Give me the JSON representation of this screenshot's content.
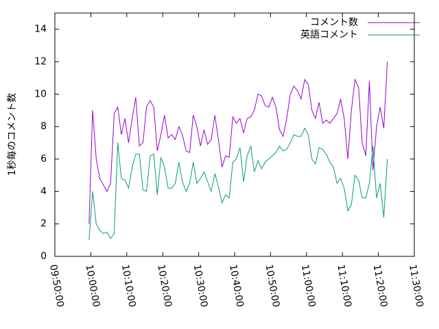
{
  "chart_data": {
    "type": "line",
    "ylabel": "1秒毎のコメント数",
    "legend": "top-right",
    "x": [
      "09:59:30",
      "10:00:30",
      "10:01:30",
      "10:02:30",
      "10:03:30",
      "10:04:30",
      "10:05:30",
      "10:06:30",
      "10:07:30",
      "10:08:30",
      "10:09:30",
      "10:10:30",
      "10:11:30",
      "10:12:30",
      "10:13:30",
      "10:14:30",
      "10:15:30",
      "10:16:30",
      "10:17:30",
      "10:18:30",
      "10:19:30",
      "10:20:30",
      "10:21:30",
      "10:22:30",
      "10:23:30",
      "10:24:30",
      "10:25:30",
      "10:26:30",
      "10:27:30",
      "10:28:30",
      "10:29:30",
      "10:30:30",
      "10:31:30",
      "10:32:30",
      "10:33:30",
      "10:34:30",
      "10:35:30",
      "10:36:30",
      "10:37:30",
      "10:38:30",
      "10:39:30",
      "10:40:30",
      "10:41:30",
      "10:42:30",
      "10:43:30",
      "10:44:30",
      "10:45:30",
      "10:46:30",
      "10:47:30",
      "10:48:30",
      "10:49:30",
      "10:50:30",
      "10:51:30",
      "10:52:30",
      "10:53:30",
      "10:54:30",
      "10:55:30",
      "10:56:30",
      "10:57:30",
      "10:58:30",
      "10:59:30",
      "11:00:30",
      "11:01:30",
      "11:02:30",
      "11:03:30",
      "11:04:30",
      "11:05:30",
      "11:06:30",
      "11:07:30",
      "11:08:30",
      "11:09:30",
      "11:10:30",
      "11:11:30",
      "11:12:30",
      "11:13:30",
      "11:14:30",
      "11:15:30",
      "11:16:30",
      "11:17:30",
      "11:18:30",
      "11:19:30",
      "11:20:30",
      "11:21:30",
      "11:22:30"
    ],
    "series": [
      {
        "name": "コメント数",
        "color": "#9400d3",
        "values": [
          2,
          9,
          6,
          4.8,
          4.4,
          4,
          4.5,
          8.8,
          9.2,
          7.5,
          8.5,
          7,
          8.5,
          9.8,
          6.8,
          7,
          9.2,
          9.6,
          9.2,
          6.5,
          7.5,
          8.7,
          7.3,
          7.5,
          7.2,
          8,
          7.5,
          6.5,
          6.4,
          8.7,
          8,
          6.8,
          7.8,
          6.9,
          7.2,
          8.7,
          7.2,
          5.5,
          6.2,
          6.1,
          8.6,
          8.2,
          8.5,
          7.6,
          8.5,
          8.6,
          9,
          10,
          9.9,
          9.3,
          9.2,
          9.8,
          9.2,
          7.8,
          7.4,
          8.5,
          10,
          10.5,
          10.2,
          9.7,
          10.9,
          10.6,
          9,
          8.5,
          9.5,
          8.2,
          8.4,
          8.2,
          8.5,
          8.8,
          9.7,
          8.5,
          6,
          9,
          10.9,
          10.4,
          7,
          6.2,
          10.8,
          5.3,
          8,
          9.2,
          7.9,
          12
        ]
      },
      {
        "name": "英語コメント",
        "color": "#009e73",
        "values": [
          1.0,
          4.0,
          2.0,
          1.6,
          1.4,
          1.5,
          1.1,
          1.4,
          7.0,
          4.8,
          4.7,
          4.2,
          5.5,
          6.3,
          6.3,
          4.1,
          4.0,
          6.2,
          6.3,
          3.8,
          6.1,
          5.5,
          4.2,
          4.2,
          4.5,
          5.8,
          4.6,
          4.0,
          4.5,
          5.8,
          4.5,
          4.8,
          5.2,
          4.6,
          4.0,
          5.1,
          4.3,
          3.3,
          3.8,
          3.6,
          5.8,
          6.0,
          6.7,
          4.6,
          6.2,
          6.8,
          5.2,
          5.9,
          5.4,
          5.8,
          6.0,
          6.2,
          6.4,
          6.8,
          6.5,
          6.6,
          7.0,
          7.5,
          7.4,
          7.4,
          7.9,
          7.5,
          6.0,
          5.7,
          6.7,
          6.6,
          6.3,
          5.8,
          5.5,
          4.5,
          4.8,
          4.2,
          2.8,
          3.2,
          5.0,
          4.7,
          3.6,
          3.6,
          4.5,
          6.8,
          3.6,
          4.5,
          2.4,
          6.0
        ]
      }
    ],
    "xlim": [
      "09:50:00",
      "11:30:00"
    ],
    "xticks": [
      "09:50:00",
      "10:00:00",
      "10:10:00",
      "10:20:00",
      "10:30:00",
      "10:40:00",
      "10:50:00",
      "11:00:00",
      "11:10:00",
      "11:20:00",
      "11:30:00"
    ],
    "ylim": [
      0,
      15
    ],
    "yticks": [
      0,
      2,
      4,
      6,
      8,
      10,
      12,
      14
    ]
  }
}
